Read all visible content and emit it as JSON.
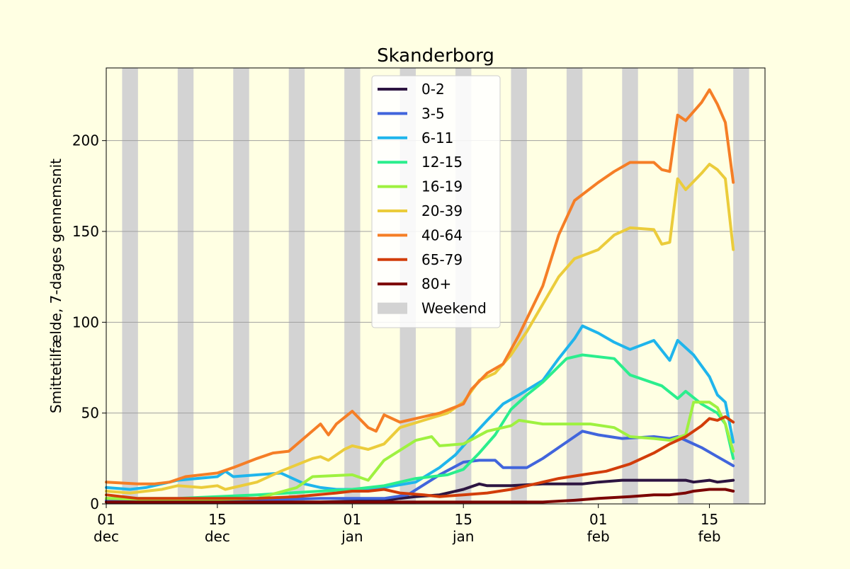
{
  "chart_data": {
    "type": "line",
    "title": "Skanderborg",
    "ylabel": "Smittetilfælde, 7-dages gennemsnit",
    "xlabel": "",
    "xlim": [
      "2020-12-01",
      "2021-02-22"
    ],
    "ylim": [
      0,
      240
    ],
    "yticks": [
      0,
      50,
      100,
      150,
      200
    ],
    "xticks": [
      {
        "date": "2020-12-01",
        "day": "01",
        "month": "dec"
      },
      {
        "date": "2020-12-15",
        "day": "15",
        "month": "dec"
      },
      {
        "date": "2021-01-01",
        "day": "01",
        "month": "jan"
      },
      {
        "date": "2021-01-15",
        "day": "15",
        "month": "jan"
      },
      {
        "date": "2021-02-01",
        "day": "01",
        "month": "feb"
      },
      {
        "date": "2021-02-15",
        "day": "15",
        "month": "feb"
      }
    ],
    "grid": "horizontal",
    "legend_position": "top-center",
    "weekend_label": "Weekend",
    "weekend_color": "#d3d3d3",
    "weekend_days": [
      "2020-12-03",
      "2020-12-10",
      "2020-12-17",
      "2020-12-24",
      "2020-12-31",
      "2021-01-07",
      "2021-01-14",
      "2021-01-21",
      "2021-01-28",
      "2021-02-04",
      "2021-02-11",
      "2021-02-18"
    ],
    "series": [
      {
        "name": "0-2",
        "color": "#2d1541",
        "points": [
          [
            "2020-12-01",
            1
          ],
          [
            "2020-12-10",
            1
          ],
          [
            "2020-12-20",
            1
          ],
          [
            "2020-12-28",
            1
          ],
          [
            "2021-01-05",
            2
          ],
          [
            "2021-01-09",
            4
          ],
          [
            "2021-01-12",
            5
          ],
          [
            "2021-01-15",
            8
          ],
          [
            "2021-01-17",
            11
          ],
          [
            "2021-01-18",
            10
          ],
          [
            "2021-01-21",
            10
          ],
          [
            "2021-01-25",
            11
          ],
          [
            "2021-01-30",
            11
          ],
          [
            "2021-02-01",
            12
          ],
          [
            "2021-02-04",
            13
          ],
          [
            "2021-02-09",
            13
          ],
          [
            "2021-02-12",
            13
          ],
          [
            "2021-02-13",
            12
          ],
          [
            "2021-02-15",
            13
          ],
          [
            "2021-02-16",
            12
          ],
          [
            "2021-02-18",
            13
          ]
        ]
      },
      {
        "name": "3-5",
        "color": "#4165dc",
        "points": [
          [
            "2020-12-01",
            2
          ],
          [
            "2020-12-10",
            1
          ],
          [
            "2020-12-20",
            2
          ],
          [
            "2020-12-28",
            3
          ],
          [
            "2021-01-02",
            3
          ],
          [
            "2021-01-05",
            3
          ],
          [
            "2021-01-08",
            5
          ],
          [
            "2021-01-12",
            16
          ],
          [
            "2021-01-15",
            23
          ],
          [
            "2021-01-17",
            24
          ],
          [
            "2021-01-19",
            24
          ],
          [
            "2021-01-20",
            20
          ],
          [
            "2021-01-23",
            20
          ],
          [
            "2021-01-25",
            25
          ],
          [
            "2021-01-27",
            31
          ],
          [
            "2021-01-29",
            37
          ],
          [
            "2021-01-30",
            40
          ],
          [
            "2021-02-01",
            38
          ],
          [
            "2021-02-04",
            36
          ],
          [
            "2021-02-08",
            37
          ],
          [
            "2021-02-10",
            36
          ],
          [
            "2021-02-11",
            37
          ],
          [
            "2021-02-14",
            31
          ],
          [
            "2021-02-16",
            26
          ],
          [
            "2021-02-18",
            21
          ]
        ]
      },
      {
        "name": "6-11",
        "color": "#1fb5ec",
        "points": [
          [
            "2020-12-01",
            9
          ],
          [
            "2020-12-04",
            8
          ],
          [
            "2020-12-06",
            9
          ],
          [
            "2020-12-10",
            13
          ],
          [
            "2020-12-15",
            15
          ],
          [
            "2020-12-16",
            18
          ],
          [
            "2020-12-17",
            15
          ],
          [
            "2020-12-23",
            17
          ],
          [
            "2020-12-26",
            11
          ],
          [
            "2020-12-28",
            9
          ],
          [
            "2020-12-30",
            8
          ],
          [
            "2021-01-01",
            8
          ],
          [
            "2021-01-05",
            9
          ],
          [
            "2021-01-09",
            12
          ],
          [
            "2021-01-12",
            20
          ],
          [
            "2021-01-14",
            27
          ],
          [
            "2021-01-15",
            32
          ],
          [
            "2021-01-18",
            46
          ],
          [
            "2021-01-20",
            55
          ],
          [
            "2021-01-22",
            60
          ],
          [
            "2021-01-25",
            68
          ],
          [
            "2021-01-27",
            80
          ],
          [
            "2021-01-29",
            91
          ],
          [
            "2021-01-30",
            98
          ],
          [
            "2021-02-01",
            94
          ],
          [
            "2021-02-03",
            89
          ],
          [
            "2021-02-05",
            85
          ],
          [
            "2021-02-08",
            90
          ],
          [
            "2021-02-10",
            79
          ],
          [
            "2021-02-11",
            90
          ],
          [
            "2021-02-13",
            82
          ],
          [
            "2021-02-15",
            70
          ],
          [
            "2021-02-16",
            60
          ],
          [
            "2021-02-17",
            56
          ],
          [
            "2021-02-18",
            34
          ]
        ]
      },
      {
        "name": "12-15",
        "color": "#2bee8d",
        "points": [
          [
            "2020-12-01",
            3
          ],
          [
            "2020-12-10",
            3
          ],
          [
            "2020-12-20",
            5
          ],
          [
            "2020-12-28",
            7
          ],
          [
            "2021-01-01",
            8
          ],
          [
            "2021-01-05",
            10
          ],
          [
            "2021-01-09",
            14
          ],
          [
            "2021-01-13",
            16
          ],
          [
            "2021-01-15",
            19
          ],
          [
            "2021-01-17",
            28
          ],
          [
            "2021-01-19",
            38
          ],
          [
            "2021-01-21",
            52
          ],
          [
            "2021-01-23",
            60
          ],
          [
            "2021-01-25",
            67
          ],
          [
            "2021-01-28",
            80
          ],
          [
            "2021-01-30",
            82
          ],
          [
            "2021-02-03",
            80
          ],
          [
            "2021-02-05",
            71
          ],
          [
            "2021-02-09",
            65
          ],
          [
            "2021-02-11",
            58
          ],
          [
            "2021-02-12",
            62
          ],
          [
            "2021-02-14",
            55
          ],
          [
            "2021-02-16",
            50
          ],
          [
            "2021-02-17",
            44
          ],
          [
            "2021-02-18",
            25
          ]
        ]
      },
      {
        "name": "16-19",
        "color": "#9ef140",
        "points": [
          [
            "2020-12-01",
            3
          ],
          [
            "2020-12-10",
            2
          ],
          [
            "2020-12-20",
            3
          ],
          [
            "2020-12-25",
            9
          ],
          [
            "2020-12-27",
            15
          ],
          [
            "2021-01-01",
            16
          ],
          [
            "2021-01-03",
            13
          ],
          [
            "2021-01-05",
            24
          ],
          [
            "2021-01-09",
            35
          ],
          [
            "2021-01-11",
            37
          ],
          [
            "2021-01-12",
            32
          ],
          [
            "2021-01-15",
            33
          ],
          [
            "2021-01-18",
            40
          ],
          [
            "2021-01-21",
            43
          ],
          [
            "2021-01-22",
            46
          ],
          [
            "2021-01-25",
            44
          ],
          [
            "2021-01-29",
            44
          ],
          [
            "2021-01-31",
            44
          ],
          [
            "2021-02-03",
            42
          ],
          [
            "2021-02-05",
            37
          ],
          [
            "2021-02-08",
            36
          ],
          [
            "2021-02-10",
            35
          ],
          [
            "2021-02-12",
            38
          ],
          [
            "2021-02-13",
            56
          ],
          [
            "2021-02-15",
            56
          ],
          [
            "2021-02-16",
            53
          ],
          [
            "2021-02-17",
            44
          ],
          [
            "2021-02-18",
            29
          ]
        ]
      },
      {
        "name": "20-39",
        "color": "#ebcc3b",
        "points": [
          [
            "2020-12-01",
            7
          ],
          [
            "2020-12-04",
            6
          ],
          [
            "2020-12-06",
            7
          ],
          [
            "2020-12-08",
            8
          ],
          [
            "2020-12-10",
            10
          ],
          [
            "2020-12-13",
            9
          ],
          [
            "2020-12-15",
            10
          ],
          [
            "2020-12-16",
            8
          ],
          [
            "2020-12-20",
            12
          ],
          [
            "2020-12-23",
            18
          ],
          [
            "2020-12-27",
            25
          ],
          [
            "2020-12-28",
            26
          ],
          [
            "2020-12-29",
            24
          ],
          [
            "2020-12-31",
            30
          ],
          [
            "2021-01-01",
            32
          ],
          [
            "2021-01-03",
            30
          ],
          [
            "2021-01-05",
            33
          ],
          [
            "2021-01-07",
            42
          ],
          [
            "2021-01-10",
            46
          ],
          [
            "2021-01-13",
            50
          ],
          [
            "2021-01-15",
            56
          ],
          [
            "2021-01-17",
            68
          ],
          [
            "2021-01-19",
            72
          ],
          [
            "2021-01-21",
            82
          ],
          [
            "2021-01-23",
            95
          ],
          [
            "2021-01-25",
            110
          ],
          [
            "2021-01-27",
            125
          ],
          [
            "2021-01-29",
            135
          ],
          [
            "2021-02-01",
            140
          ],
          [
            "2021-02-03",
            148
          ],
          [
            "2021-02-05",
            152
          ],
          [
            "2021-02-08",
            151
          ],
          [
            "2021-02-09",
            143
          ],
          [
            "2021-02-10",
            144
          ],
          [
            "2021-02-11",
            179
          ],
          [
            "2021-02-12",
            173
          ],
          [
            "2021-02-14",
            182
          ],
          [
            "2021-02-15",
            187
          ],
          [
            "2021-02-16",
            184
          ],
          [
            "2021-02-17",
            179
          ],
          [
            "2021-02-18",
            140
          ]
        ]
      },
      {
        "name": "40-64",
        "color": "#f57e26",
        "points": [
          [
            "2020-12-01",
            12
          ],
          [
            "2020-12-05",
            11
          ],
          [
            "2020-12-07",
            11
          ],
          [
            "2020-12-09",
            12
          ],
          [
            "2020-12-11",
            15
          ],
          [
            "2020-12-15",
            17
          ],
          [
            "2020-12-17",
            20
          ],
          [
            "2020-12-20",
            25
          ],
          [
            "2020-12-22",
            28
          ],
          [
            "2020-12-24",
            29
          ],
          [
            "2020-12-28",
            44
          ],
          [
            "2020-12-29",
            38
          ],
          [
            "2020-12-30",
            44
          ],
          [
            "2021-01-01",
            51
          ],
          [
            "2021-01-03",
            42
          ],
          [
            "2021-01-04",
            40
          ],
          [
            "2021-01-05",
            49
          ],
          [
            "2021-01-07",
            45
          ],
          [
            "2021-01-10",
            48
          ],
          [
            "2021-01-12",
            50
          ],
          [
            "2021-01-15",
            55
          ],
          [
            "2021-01-16",
            63
          ],
          [
            "2021-01-18",
            72
          ],
          [
            "2021-01-20",
            77
          ],
          [
            "2021-01-22",
            93
          ],
          [
            "2021-01-25",
            120
          ],
          [
            "2021-01-27",
            148
          ],
          [
            "2021-01-29",
            167
          ],
          [
            "2021-02-01",
            177
          ],
          [
            "2021-02-03",
            183
          ],
          [
            "2021-02-05",
            188
          ],
          [
            "2021-02-08",
            188
          ],
          [
            "2021-02-09",
            184
          ],
          [
            "2021-02-10",
            183
          ],
          [
            "2021-02-11",
            214
          ],
          [
            "2021-02-12",
            211
          ],
          [
            "2021-02-14",
            221
          ],
          [
            "2021-02-15",
            228
          ],
          [
            "2021-02-16",
            220
          ],
          [
            "2021-02-17",
            210
          ],
          [
            "2021-02-18",
            177
          ]
        ]
      },
      {
        "name": "65-79",
        "color": "#d23d0a",
        "points": [
          [
            "2020-12-01",
            5
          ],
          [
            "2020-12-05",
            3
          ],
          [
            "2020-12-10",
            3
          ],
          [
            "2020-12-15",
            3
          ],
          [
            "2020-12-20",
            3
          ],
          [
            "2020-12-25",
            4
          ],
          [
            "2020-12-30",
            6
          ],
          [
            "2021-01-01",
            7
          ],
          [
            "2021-01-03",
            7
          ],
          [
            "2021-01-05",
            8
          ],
          [
            "2021-01-07",
            6
          ],
          [
            "2021-01-10",
            5
          ],
          [
            "2021-01-12",
            4
          ],
          [
            "2021-01-15",
            5
          ],
          [
            "2021-01-18",
            6
          ],
          [
            "2021-01-21",
            8
          ],
          [
            "2021-01-24",
            11
          ],
          [
            "2021-01-27",
            14
          ],
          [
            "2021-01-30",
            16
          ],
          [
            "2021-02-02",
            18
          ],
          [
            "2021-02-05",
            22
          ],
          [
            "2021-02-08",
            28
          ],
          [
            "2021-02-10",
            33
          ],
          [
            "2021-02-12",
            37
          ],
          [
            "2021-02-14",
            43
          ],
          [
            "2021-02-15",
            47
          ],
          [
            "2021-02-16",
            46
          ],
          [
            "2021-02-17",
            48
          ],
          [
            "2021-02-18",
            45
          ]
        ]
      },
      {
        "name": "80+",
        "color": "#7b0403",
        "points": [
          [
            "2020-12-01",
            1
          ],
          [
            "2020-12-10",
            1
          ],
          [
            "2020-12-20",
            1
          ],
          [
            "2020-12-28",
            1
          ],
          [
            "2021-01-05",
            1
          ],
          [
            "2021-01-12",
            1
          ],
          [
            "2021-01-18",
            1
          ],
          [
            "2021-01-25",
            1
          ],
          [
            "2021-01-29",
            2
          ],
          [
            "2021-02-01",
            3
          ],
          [
            "2021-02-05",
            4
          ],
          [
            "2021-02-08",
            5
          ],
          [
            "2021-02-10",
            5
          ],
          [
            "2021-02-12",
            6
          ],
          [
            "2021-02-13",
            7
          ],
          [
            "2021-02-15",
            8
          ],
          [
            "2021-02-17",
            8
          ],
          [
            "2021-02-18",
            7
          ]
        ]
      }
    ]
  }
}
